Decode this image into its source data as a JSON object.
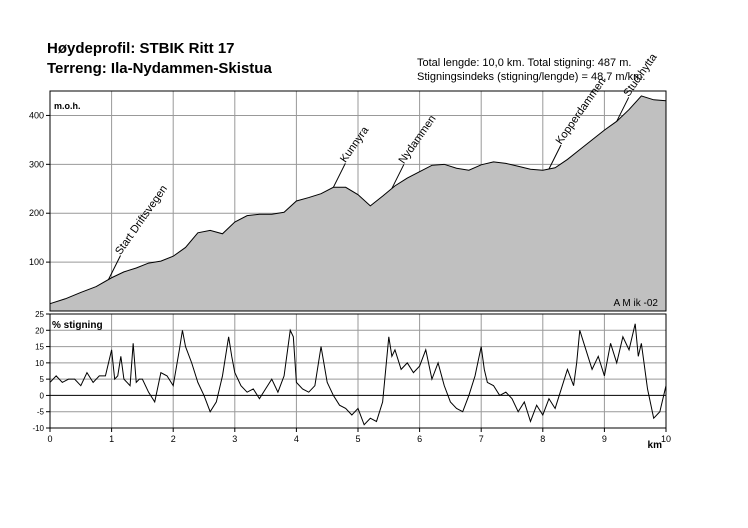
{
  "header": {
    "title1": "Høydeprofil:  STBIK Ritt 17",
    "title2": "Terreng: Ila-Nydammen-Skistua",
    "info1": "Total lengde: 10,0 km. Total stigning: 487 m.",
    "info2": "Stigningsindeks (stigning/lengde) = 48,7 m/km."
  },
  "chart_data": [
    {
      "type": "area",
      "ylabel": "m.o.h.",
      "xlim": [
        0,
        10
      ],
      "ylim": [
        0,
        450
      ],
      "yticks": [
        100,
        200,
        300,
        400
      ],
      "xticks": [
        0,
        1,
        2,
        3,
        4,
        5,
        6,
        7,
        8,
        9,
        10
      ],
      "grid": true,
      "fill_color": "#c0c0c0",
      "credit": "A M ik -02",
      "x": [
        0,
        0.25,
        0.5,
        0.75,
        1,
        1.2,
        1.4,
        1.6,
        1.8,
        2,
        2.2,
        2.4,
        2.6,
        2.8,
        3,
        3.2,
        3.4,
        3.6,
        3.8,
        4,
        4.2,
        4.4,
        4.6,
        4.8,
        5,
        5.2,
        5.4,
        5.6,
        5.8,
        6,
        6.2,
        6.4,
        6.6,
        6.8,
        7,
        7.2,
        7.4,
        7.6,
        7.8,
        8,
        8.2,
        8.4,
        8.6,
        8.8,
        9,
        9.2,
        9.4,
        9.6,
        9.8,
        10
      ],
      "y": [
        15,
        25,
        38,
        50,
        68,
        80,
        88,
        98,
        102,
        112,
        130,
        160,
        165,
        158,
        182,
        195,
        198,
        198,
        202,
        225,
        232,
        240,
        253,
        253,
        238,
        215,
        235,
        256,
        272,
        285,
        298,
        300,
        292,
        288,
        299,
        305,
        302,
        296,
        290,
        288,
        293,
        310,
        330,
        350,
        370,
        388,
        412,
        440,
        432,
        430
      ],
      "annotations": [
        {
          "text": "Start Driftsvegen",
          "x": 0.95
        },
        {
          "text": "Kunnyra",
          "x": 4.6
        },
        {
          "text": "Nydammen",
          "x": 5.55
        },
        {
          "text": "Kopperdammen",
          "x": 8.1
        },
        {
          "text": "Stud.hytta",
          "x": 9.2
        }
      ]
    },
    {
      "type": "line",
      "ylabel": "% stigning",
      "xlabel": "km",
      "xlim": [
        0,
        10
      ],
      "ylim": [
        -10,
        25
      ],
      "yticks": [
        -10,
        -5,
        0,
        5,
        10,
        15,
        20,
        25
      ],
      "xticks": [
        0,
        1,
        2,
        3,
        4,
        5,
        6,
        7,
        8,
        9,
        10
      ],
      "grid": true,
      "x": [
        0,
        0.1,
        0.2,
        0.3,
        0.4,
        0.5,
        0.6,
        0.7,
        0.8,
        0.9,
        1.0,
        1.05,
        1.1,
        1.15,
        1.2,
        1.3,
        1.35,
        1.4,
        1.45,
        1.5,
        1.6,
        1.7,
        1.8,
        1.9,
        2.0,
        2.1,
        2.15,
        2.2,
        2.3,
        2.4,
        2.5,
        2.6,
        2.7,
        2.8,
        2.9,
        2.95,
        3.0,
        3.1,
        3.2,
        3.3,
        3.4,
        3.5,
        3.6,
        3.7,
        3.8,
        3.9,
        3.95,
        4.0,
        4.1,
        4.2,
        4.3,
        4.4,
        4.5,
        4.6,
        4.7,
        4.8,
        4.9,
        5.0,
        5.1,
        5.2,
        5.3,
        5.4,
        5.5,
        5.55,
        5.6,
        5.7,
        5.8,
        5.9,
        6.0,
        6.1,
        6.2,
        6.3,
        6.4,
        6.5,
        6.6,
        6.7,
        6.8,
        6.9,
        7.0,
        7.05,
        7.1,
        7.2,
        7.3,
        7.4,
        7.5,
        7.6,
        7.7,
        7.8,
        7.9,
        8.0,
        8.1,
        8.2,
        8.3,
        8.4,
        8.5,
        8.55,
        8.6,
        8.7,
        8.8,
        8.9,
        9.0,
        9.1,
        9.2,
        9.3,
        9.4,
        9.5,
        9.55,
        9.6,
        9.7,
        9.8,
        9.9,
        10.0
      ],
      "y": [
        4,
        6,
        4,
        5,
        5,
        3,
        7,
        4,
        6,
        6,
        14,
        5,
        6,
        12,
        5,
        3,
        16,
        4,
        5,
        5,
        1,
        -2,
        7,
        6,
        3,
        14,
        20,
        15,
        10,
        4,
        0,
        -5,
        -2,
        6,
        18,
        12,
        7,
        3,
        1,
        2,
        -1,
        2,
        5,
        1,
        6,
        20,
        18,
        4,
        2,
        1,
        3,
        15,
        4,
        0,
        -3,
        -4,
        -6,
        -4,
        -9,
        -7,
        -8,
        -2,
        18,
        12,
        14,
        8,
        10,
        7,
        9,
        14,
        5,
        10,
        3,
        -2,
        -4,
        -5,
        0,
        6,
        15,
        8,
        4,
        3,
        0,
        1,
        -1,
        -5,
        -2,
        -8,
        -3,
        -6,
        -1,
        -4,
        2,
        8,
        3,
        10,
        20,
        14,
        8,
        12,
        6,
        16,
        10,
        18,
        14,
        22,
        12,
        16,
        2,
        -7,
        -5,
        3
      ]
    }
  ]
}
